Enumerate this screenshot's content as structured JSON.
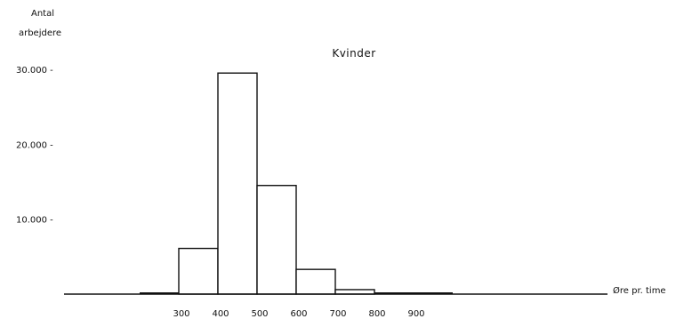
{
  "chart_data": {
    "type": "bar",
    "title": "Kvinder",
    "ylabel_lines": [
      "Antal",
      "arbejdere"
    ],
    "xlabel": "Øre pr. time",
    "ylim": [
      0,
      30000
    ],
    "y_ticks": [
      {
        "value": 30000,
        "label": "30.000 -"
      },
      {
        "value": 20000,
        "label": "20.000 -"
      },
      {
        "value": 10000,
        "label": "10.000 -"
      }
    ],
    "x_ticks": [
      {
        "value": 300,
        "label": "300"
      },
      {
        "value": 400,
        "label": "400"
      },
      {
        "value": 500,
        "label": "500"
      },
      {
        "value": 600,
        "label": "600"
      },
      {
        "value": 700,
        "label": "700"
      },
      {
        "value": 800,
        "label": "800"
      },
      {
        "value": 900,
        "label": "900"
      }
    ],
    "bins": [
      {
        "from": 200,
        "to": 300,
        "value": 150
      },
      {
        "from": 300,
        "to": 400,
        "value": 6100
      },
      {
        "from": 400,
        "to": 500,
        "value": 29500
      },
      {
        "from": 500,
        "to": 600,
        "value": 14500
      },
      {
        "from": 600,
        "to": 700,
        "value": 3300
      },
      {
        "from": 700,
        "to": 800,
        "value": 600
      },
      {
        "from": 800,
        "to": 900,
        "value": 150
      },
      {
        "from": 900,
        "to": 1000,
        "value": 100
      }
    ],
    "grid": false,
    "legend": "none"
  }
}
